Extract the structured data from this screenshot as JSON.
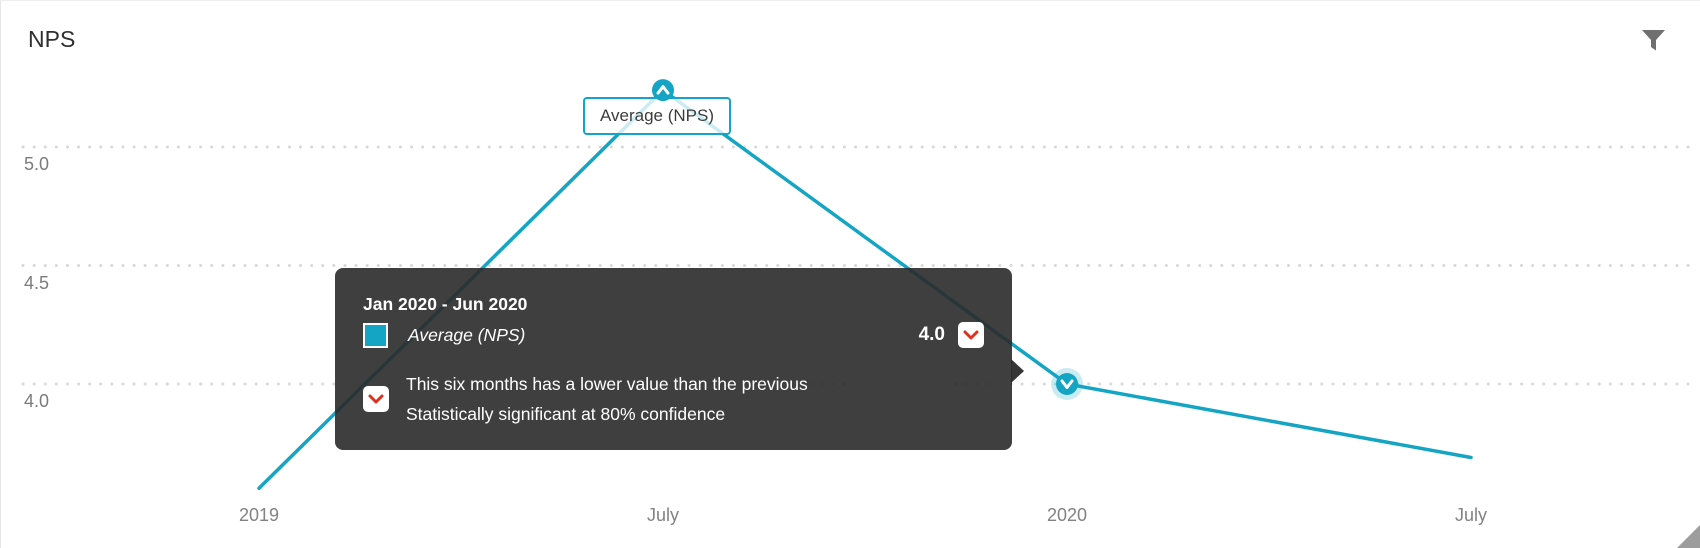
{
  "widget": {
    "title": "NPS"
  },
  "header": {
    "filter_icon": "funnel"
  },
  "annotation": {
    "label": "Average (NPS)"
  },
  "tooltip": {
    "date_range": "Jan 2020 - Jun 2020",
    "series_label": "Average (NPS)",
    "value": "4.0",
    "change_icon": "chevron-down-red",
    "note_icon": "chevron-down-red",
    "note_line1": "This six months has a lower value than the previous",
    "note_line2": "Statistically significant at 80% confidence"
  },
  "colors": {
    "accent_teal": "#14a4c4",
    "halo": "rgba(20,164,196,0.22)",
    "significance_red": "#e0301e",
    "gridline": "#d9d9d9",
    "axis_text": "#7b7b7b",
    "title_text": "#2f2f2f",
    "tooltip_bg": "rgba(42,42,42,0.9)"
  },
  "chart_data": {
    "type": "line",
    "title": "NPS",
    "x": [
      "2019",
      "July",
      "2020",
      "July"
    ],
    "series": [
      {
        "name": "Average (NPS)",
        "values": [
          3.56,
          5.24,
          4.0,
          3.69
        ]
      }
    ],
    "yticks": [
      5.0,
      4.5,
      4.0
    ],
    "ylim": [
      3.4,
      5.45
    ],
    "grid": "horizontal-dotted",
    "legend": "none",
    "markers": [
      {
        "point_index": 1,
        "direction": "up",
        "significant": true,
        "highlighted": false
      },
      {
        "point_index": 2,
        "direction": "down",
        "significant": true,
        "highlighted": true
      }
    ]
  }
}
